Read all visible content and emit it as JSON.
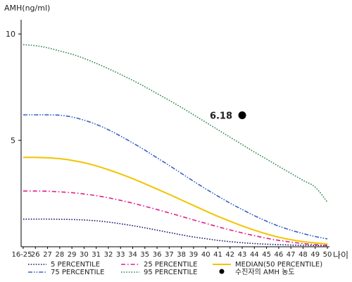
{
  "chart_data": {
    "type": "line",
    "title": "",
    "ylabel": "AMH(ng/ml)",
    "xlabel": "나이",
    "ylim": [
      0,
      11
    ],
    "yticks": [
      5,
      10
    ],
    "x": [
      "16-25",
      "26",
      "27",
      "28",
      "29",
      "30",
      "31",
      "32",
      "33",
      "34",
      "35",
      "36",
      "37",
      "38",
      "39",
      "40",
      "41",
      "42",
      "43",
      "44",
      "45",
      "46",
      "47",
      "48",
      "49",
      "50"
    ],
    "series": [
      {
        "name": "5 PERCENTILE",
        "color": "#1a1a6e",
        "style": "dotted",
        "values": [
          1.3,
          1.3,
          1.3,
          1.29,
          1.28,
          1.26,
          1.22,
          1.16,
          1.08,
          0.99,
          0.89,
          0.78,
          0.67,
          0.56,
          0.46,
          0.38,
          0.3,
          0.24,
          0.19,
          0.15,
          0.12,
          0.1,
          0.08,
          0.07,
          0.06,
          0.05
        ]
      },
      {
        "name": "25 PERCENTILE",
        "color": "#e0208a",
        "style": "dashdot",
        "values": [
          2.62,
          2.62,
          2.61,
          2.58,
          2.54,
          2.48,
          2.4,
          2.3,
          2.18,
          2.05,
          1.9,
          1.75,
          1.59,
          1.43,
          1.26,
          1.1,
          0.94,
          0.79,
          0.65,
          0.52,
          0.4,
          0.3,
          0.22,
          0.15,
          0.1,
          0.07
        ]
      },
      {
        "name": "MEDIAN(50 PERCENTILE)",
        "color": "#f2c400",
        "style": "solid",
        "values": [
          4.2,
          4.2,
          4.18,
          4.14,
          4.06,
          3.95,
          3.8,
          3.62,
          3.42,
          3.2,
          2.96,
          2.71,
          2.46,
          2.2,
          1.94,
          1.68,
          1.43,
          1.2,
          0.98,
          0.78,
          0.6,
          0.45,
          0.33,
          0.24,
          0.18,
          0.13
        ]
      },
      {
        "name": "75 PERCENTILE",
        "color": "#3a63c6",
        "style": "dashdotdot",
        "values": [
          6.2,
          6.2,
          6.2,
          6.18,
          6.1,
          5.95,
          5.75,
          5.5,
          5.2,
          4.88,
          4.54,
          4.18,
          3.82,
          3.45,
          3.08,
          2.72,
          2.38,
          2.05,
          1.75,
          1.46,
          1.2,
          0.97,
          0.78,
          0.62,
          0.48,
          0.37
        ]
      },
      {
        "name": "95 PERCENTILE",
        "color": "#2e8a4e",
        "style": "dotted",
        "values": [
          9.5,
          9.45,
          9.35,
          9.2,
          9.05,
          8.85,
          8.62,
          8.37,
          8.1,
          7.82,
          7.52,
          7.2,
          6.88,
          6.55,
          6.2,
          5.85,
          5.5,
          5.15,
          4.8,
          4.45,
          4.12,
          3.78,
          3.45,
          3.12,
          2.8,
          2.1
        ]
      }
    ],
    "point": {
      "label": "수진자의 AMH 농도",
      "x": "43",
      "y": 6.18,
      "value_label": "6.18",
      "color": "#000000"
    },
    "legend": {
      "position": "bottom",
      "order": [
        "5 PERCENTILE",
        "25 PERCENTILE",
        "MEDIAN(50 PERCENTILE)",
        "75 PERCENTILE",
        "95 PERCENTILE",
        "수진자의 AMH 농도"
      ]
    },
    "grid": false
  }
}
